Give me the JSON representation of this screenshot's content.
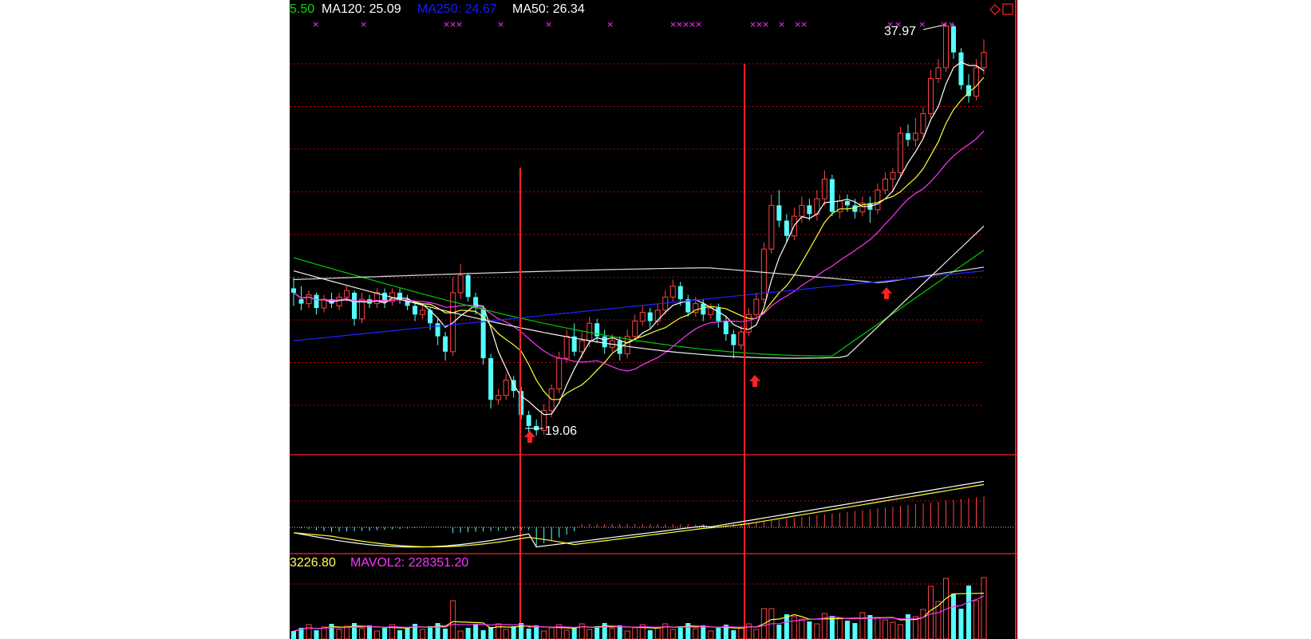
{
  "header": {
    "ma5": {
      "text": "5.50",
      "color": "#00dd00"
    },
    "ma120": {
      "text": "MA120: 25.09",
      "color": "#ffffff"
    },
    "ma250": {
      "text": "MA250: 24.67",
      "color": "#1a1aff"
    },
    "ma50": {
      "text": "MA50: 26.34",
      "color": "#ffffff"
    }
  },
  "volume_header": {
    "mavol1": {
      "text": "3226.80",
      "color": "#ffff55"
    },
    "mavol2": {
      "text": "MAVOL2: 228351.20",
      "color": "#ff33ff"
    }
  },
  "annotations": {
    "low_label": "19.06",
    "high_label": "37.97"
  },
  "colors": {
    "up": "#ff4444",
    "down": "#55ffff",
    "grid": "#cc0000",
    "ma_white": "#ffffff",
    "ma_yellow": "#ffff33",
    "ma_magenta": "#ff33ff",
    "ma_green": "#00cc00",
    "ma_blue": "#2222ff",
    "ma_gray": "#dddddd",
    "marker": "#ff33ff",
    "arrow": "#ff2222"
  },
  "chart_data": {
    "type": "candlestick",
    "series": [
      {
        "name": "MA120",
        "values": [
          25.09
        ]
      },
      {
        "name": "MA250",
        "values": [
          24.67
        ]
      },
      {
        "name": "MA50",
        "values": [
          26.34
        ]
      }
    ],
    "price_low": 19.06,
    "price_high": 37.97,
    "candles": [
      [
        25.8,
        25.6,
        26.3,
        25.0
      ],
      [
        25.3,
        25.1,
        25.9,
        24.8
      ],
      [
        25.1,
        25.5,
        25.7,
        24.9
      ],
      [
        25.5,
        24.9,
        25.6,
        24.6
      ],
      [
        24.9,
        25.3,
        25.5,
        24.7
      ],
      [
        25.3,
        25.1,
        25.6,
        24.9
      ],
      [
        25.0,
        25.4,
        25.6,
        24.8
      ],
      [
        25.4,
        25.7,
        25.9,
        25.2
      ],
      [
        25.6,
        24.4,
        25.7,
        24.1
      ],
      [
        24.4,
        25.3,
        25.6,
        24.2
      ],
      [
        25.3,
        25.1,
        25.5,
        24.9
      ],
      [
        25.1,
        25.6,
        25.8,
        24.9
      ],
      [
        25.6,
        25.2,
        25.8,
        24.9
      ],
      [
        25.2,
        25.6,
        25.8,
        25.0
      ],
      [
        25.6,
        25.3,
        25.8,
        25.1
      ],
      [
        25.3,
        25.0,
        25.5,
        24.8
      ],
      [
        25.0,
        24.6,
        25.2,
        24.3
      ],
      [
        24.6,
        24.8,
        25.0,
        24.4
      ],
      [
        24.8,
        24.2,
        24.9,
        23.9
      ],
      [
        24.2,
        23.6,
        24.4,
        23.2
      ],
      [
        23.6,
        22.9,
        23.8,
        22.5
      ],
      [
        22.9,
        25.6,
        26.3,
        22.7
      ],
      [
        25.6,
        26.4,
        26.9,
        25.3
      ],
      [
        26.4,
        25.4,
        26.5,
        25.2
      ],
      [
        25.4,
        24.9,
        25.6,
        24.6
      ],
      [
        24.9,
        22.6,
        25.0,
        22.3
      ],
      [
        22.6,
        20.7,
        22.8,
        20.3
      ],
      [
        20.7,
        20.9,
        21.2,
        20.5
      ],
      [
        20.9,
        21.6,
        21.9,
        20.7
      ],
      [
        21.6,
        21.1,
        21.8,
        20.8
      ],
      [
        21.1,
        20.0,
        21.3,
        19.8
      ],
      [
        20.0,
        19.5,
        20.2,
        19.2
      ],
      [
        19.5,
        19.3,
        19.8,
        19.06
      ],
      [
        19.3,
        20.2,
        20.5,
        19.1
      ],
      [
        20.2,
        21.2,
        21.4,
        19.9
      ],
      [
        21.2,
        22.6,
        22.9,
        21.0
      ],
      [
        22.6,
        23.6,
        23.9,
        22.4
      ],
      [
        23.6,
        22.9,
        24.2,
        22.7
      ],
      [
        22.9,
        23.4,
        23.8,
        22.6
      ],
      [
        23.4,
        24.2,
        24.5,
        23.1
      ],
      [
        24.2,
        23.6,
        24.4,
        23.3
      ],
      [
        23.6,
        23.1,
        23.9,
        22.8
      ],
      [
        23.1,
        23.4,
        23.7,
        22.9
      ],
      [
        23.4,
        22.8,
        23.6,
        22.5
      ],
      [
        22.8,
        23.6,
        23.9,
        22.6
      ],
      [
        23.6,
        24.3,
        24.6,
        23.4
      ],
      [
        24.3,
        24.7,
        25.0,
        24.1
      ],
      [
        24.7,
        24.3,
        24.9,
        24.0
      ],
      [
        24.3,
        24.8,
        25.1,
        24.1
      ],
      [
        24.8,
        25.4,
        25.7,
        24.6
      ],
      [
        25.4,
        25.9,
        26.2,
        25.2
      ],
      [
        25.9,
        25.3,
        26.1,
        25.0
      ],
      [
        25.3,
        24.7,
        25.5,
        24.5
      ],
      [
        24.7,
        25.1,
        25.4,
        24.5
      ],
      [
        25.1,
        24.6,
        25.3,
        24.3
      ],
      [
        24.6,
        24.9,
        25.1,
        24.4
      ],
      [
        24.9,
        24.3,
        25.1,
        24.0
      ],
      [
        24.3,
        23.7,
        24.5,
        23.4
      ],
      [
        23.7,
        23.2,
        23.9,
        22.6
      ],
      [
        23.2,
        23.8,
        24.1,
        23.0
      ],
      [
        23.8,
        24.6,
        24.9,
        23.6
      ],
      [
        24.6,
        25.3,
        25.6,
        24.4
      ],
      [
        25.3,
        27.6,
        27.9,
        25.1
      ],
      [
        27.6,
        29.6,
        30.1,
        27.4
      ],
      [
        29.6,
        28.9,
        30.3,
        28.6
      ],
      [
        28.9,
        28.2,
        29.2,
        27.9
      ],
      [
        28.2,
        29.1,
        29.5,
        28.0
      ],
      [
        29.1,
        29.6,
        30.0,
        28.8
      ],
      [
        29.6,
        29.2,
        29.9,
        28.9
      ],
      [
        29.2,
        29.9,
        30.3,
        28.9
      ],
      [
        29.9,
        30.8,
        31.2,
        29.6
      ],
      [
        30.8,
        29.3,
        31.0,
        29.1
      ],
      [
        29.3,
        29.8,
        30.1,
        29.0
      ],
      [
        29.8,
        29.6,
        30.1,
        29.3
      ],
      [
        29.6,
        29.3,
        29.9,
        29.0
      ],
      [
        29.3,
        29.7,
        30.0,
        29.1
      ],
      [
        29.7,
        29.4,
        30.0,
        28.8
      ],
      [
        29.4,
        30.3,
        30.6,
        29.2
      ],
      [
        30.3,
        30.8,
        31.1,
        30.1
      ],
      [
        30.8,
        31.1,
        31.3,
        30.2
      ],
      [
        31.1,
        32.9,
        33.2,
        30.9
      ],
      [
        32.9,
        32.6,
        33.3,
        32.3
      ],
      [
        32.6,
        32.9,
        33.6,
        32.3
      ],
      [
        32.9,
        33.8,
        34.1,
        32.7
      ],
      [
        33.8,
        35.4,
        35.8,
        33.6
      ],
      [
        35.4,
        35.9,
        36.3,
        35.2
      ],
      [
        35.9,
        37.8,
        37.97,
        35.7
      ],
      [
        37.8,
        36.6,
        37.9,
        36.3
      ],
      [
        36.6,
        35.1,
        36.8,
        34.9
      ],
      [
        35.1,
        34.6,
        35.6,
        34.3
      ],
      [
        34.6,
        35.9,
        36.3,
        34.4
      ],
      [
        35.9,
        36.6,
        37.2,
        35.6
      ]
    ]
  }
}
